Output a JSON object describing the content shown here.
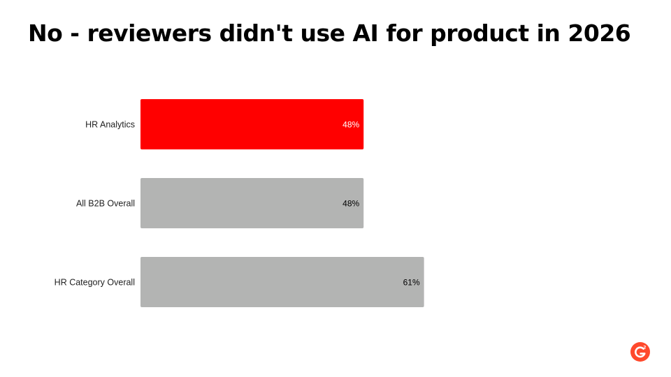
{
  "title": "No - reviewers didn't use AI for product in 2026",
  "chart_data": {
    "type": "bar",
    "orientation": "horizontal",
    "categories": [
      "HR Analytics",
      "All B2B Overall",
      "HR Category Overall"
    ],
    "values": [
      48,
      48,
      61
    ],
    "value_labels": [
      "48%",
      "48%",
      "61%"
    ],
    "unit": "%",
    "xlim": [
      0,
      100
    ],
    "grid": false,
    "legend": "none",
    "bar_colors": [
      "#ff0000",
      "#b3b4b3",
      "#b3b4b3"
    ],
    "value_label_colors": [
      "#ffffff",
      "#000000",
      "#000000"
    ]
  },
  "logo": {
    "icon": "g2-logo-icon",
    "color": "#ff492c"
  }
}
